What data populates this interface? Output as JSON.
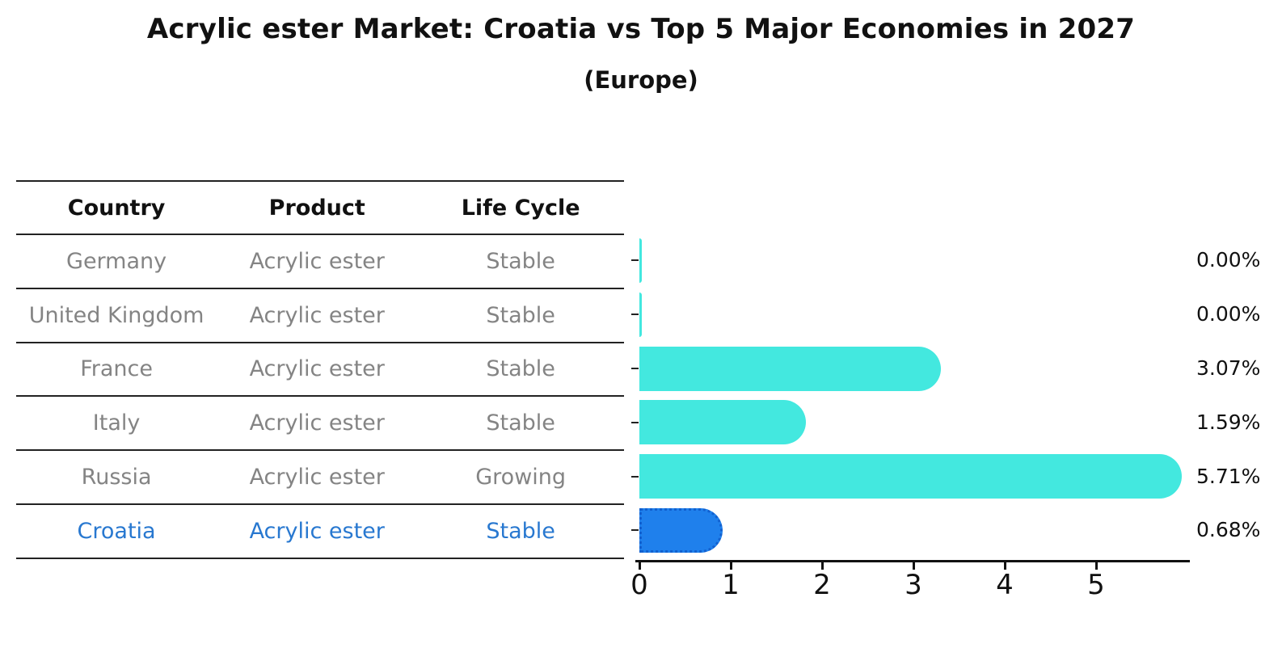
{
  "chart_data": {
    "type": "bar",
    "orientation": "horizontal",
    "title": "Acrylic ester Market: Croatia vs Top 5 Major Economies in 2027",
    "subtitle": "(Europe)",
    "categories": [
      "Germany",
      "United Kingdom",
      "France",
      "Italy",
      "Russia",
      "Croatia"
    ],
    "values": [
      0.0,
      0.0,
      3.07,
      1.59,
      5.71,
      0.68
    ],
    "value_labels": [
      "0.00%",
      "0.00%",
      "3.07%",
      "1.59%",
      "5.71%",
      "0.68%"
    ],
    "x_ticks": [
      "0",
      "1",
      "2",
      "3",
      "4",
      "5"
    ],
    "xlim": [
      0,
      6
    ],
    "grid": "off",
    "legend": "none",
    "bar_color": "#43e8df",
    "highlight_bar_color": "#1f80ec",
    "highlight_index": 5,
    "xlabel": "",
    "ylabel": ""
  },
  "table": {
    "columns": [
      "Country",
      "Product",
      "Life Cycle"
    ],
    "rows": [
      {
        "country": "Germany",
        "product": "Acrylic ester",
        "life_cycle": "Stable",
        "highlight": false
      },
      {
        "country": "United Kingdom",
        "product": "Acrylic ester",
        "life_cycle": "Stable",
        "highlight": false
      },
      {
        "country": "France",
        "product": "Acrylic ester",
        "life_cycle": "Stable",
        "highlight": false
      },
      {
        "country": "Italy",
        "product": "Acrylic ester",
        "life_cycle": "Stable",
        "highlight": false
      },
      {
        "country": "Russia",
        "product": "Acrylic ester",
        "life_cycle": "Growing",
        "highlight": false
      },
      {
        "country": "Croatia",
        "product": "Acrylic ester",
        "life_cycle": "Stable",
        "highlight": true
      }
    ]
  },
  "colors": {
    "bar": "#43e8df",
    "highlight_bar": "#1f80ec",
    "highlight_bar_border": "#1260cf",
    "highlight_text": "#2878d0",
    "table_text": "#848484",
    "axis": "#111111"
  }
}
